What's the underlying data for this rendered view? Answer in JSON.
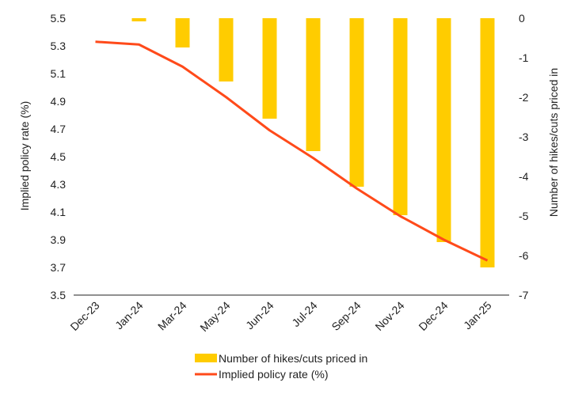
{
  "chart_data": {
    "type": "bar+line",
    "categories": [
      "Dec-23",
      "Jan-24",
      "Mar-24",
      "May-24",
      "Jun-24",
      "Jul-24",
      "Sep-24",
      "Nov-24",
      "Dec-24",
      "Jan-25"
    ],
    "series": [
      {
        "name": "Number of hikes/cuts priced in",
        "type": "bar",
        "axis": "right",
        "color": "#FFCC00",
        "values": [
          null,
          -0.08,
          -0.74,
          -1.6,
          -2.54,
          -3.36,
          -4.26,
          -4.98,
          -5.66,
          -6.3
        ]
      },
      {
        "name": "Implied policy rate (%)",
        "type": "line",
        "axis": "left",
        "color": "#FF4A1A",
        "values": [
          5.33,
          5.31,
          5.15,
          4.93,
          4.69,
          4.49,
          4.27,
          4.07,
          3.9,
          3.75
        ]
      }
    ],
    "ylabel": "Implied policy rate (%)",
    "y2label": "Number of hikes/cuts priced in",
    "ylim": [
      3.5,
      5.5
    ],
    "y2lim": [
      -7,
      0
    ],
    "yticks": [
      "3.5",
      "3.7",
      "3.9",
      "4.1",
      "4.3",
      "4.5",
      "4.7",
      "4.9",
      "5.1",
      "5.3",
      "5.5"
    ],
    "y2ticks": [
      "-7",
      "-6",
      "-5",
      "-4",
      "-3",
      "-2",
      "-1",
      "0"
    ],
    "grid": false,
    "legend": "bottom"
  }
}
